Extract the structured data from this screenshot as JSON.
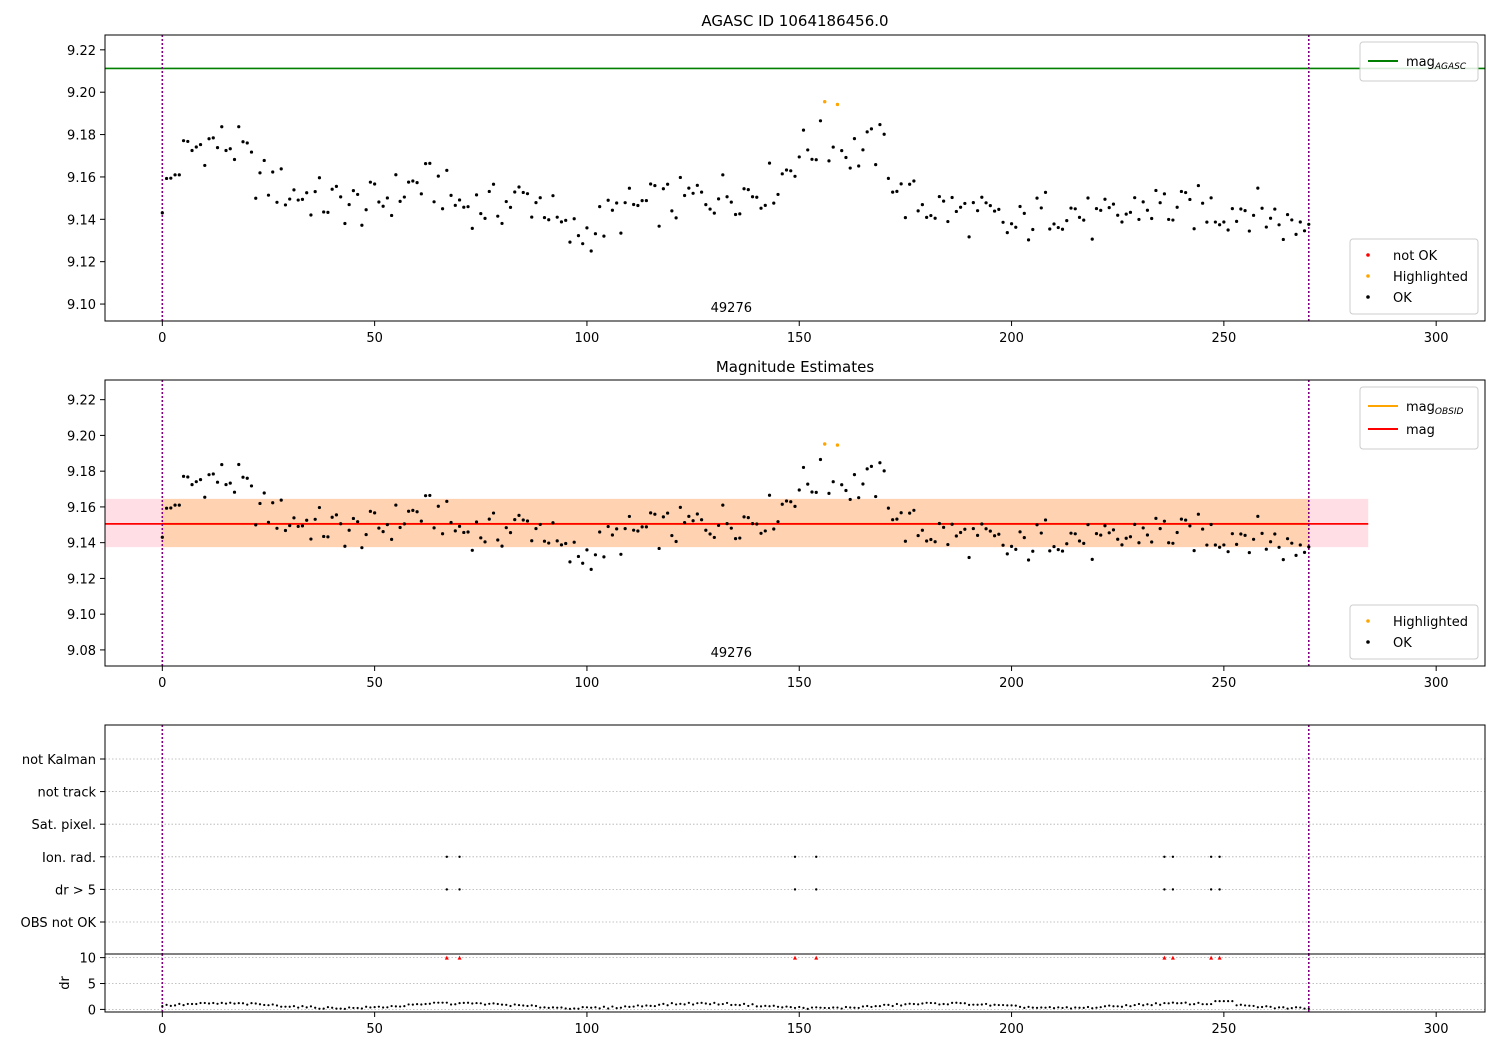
{
  "chart_data": [
    {
      "type": "scatter",
      "title": "AGASC ID 1064186456.0",
      "xlim": [
        -13.5,
        311.5
      ],
      "ylim": [
        9.092,
        9.227
      ],
      "xticks": [
        0,
        50,
        100,
        150,
        200,
        250,
        300
      ],
      "yticks": [
        9.1,
        9.12,
        9.14,
        9.16,
        9.18,
        9.2,
        9.22
      ],
      "xtick_labels": [
        "0",
        "50",
        "100",
        "150",
        "200",
        "250",
        "300"
      ],
      "ytick_labels": [
        "9.10",
        "9.12",
        "9.14",
        "9.16",
        "9.18",
        "9.20",
        "9.22"
      ],
      "annotation": "49276",
      "annotation_x": 134,
      "vlines": [
        0,
        270
      ],
      "hline": {
        "y": 9.2112,
        "color": "#008000"
      },
      "series": [
        {
          "name": "not OK",
          "color": "#ff0000",
          "points": []
        },
        {
          "name": "Highlighted",
          "color": "#ffa500",
          "points": [
            [
              156,
              9.1955
            ],
            [
              159,
              9.1942
            ]
          ]
        },
        {
          "name": "OK",
          "color": "#000000"
        }
      ],
      "legend_lines": [
        {
          "label": "mag",
          "sub": "AGASC",
          "color": "#008000"
        }
      ],
      "legend_markers": [
        {
          "label": "not OK",
          "color": "#ff0000"
        },
        {
          "label": "Highlighted",
          "color": "#ffa500"
        },
        {
          "label": "OK",
          "color": "#000000"
        }
      ]
    },
    {
      "type": "scatter",
      "title": "Magnitude Estimates",
      "xlim": [
        -13.5,
        311.5
      ],
      "ylim": [
        9.071,
        9.231
      ],
      "xticks": [
        0,
        50,
        100,
        150,
        200,
        250,
        300
      ],
      "yticks": [
        9.08,
        9.1,
        9.12,
        9.14,
        9.16,
        9.18,
        9.2,
        9.22
      ],
      "xtick_labels": [
        "0",
        "50",
        "100",
        "150",
        "200",
        "250",
        "300"
      ],
      "ytick_labels": [
        "9.08",
        "9.10",
        "9.12",
        "9.14",
        "9.16",
        "9.18",
        "9.20",
        "9.22"
      ],
      "annotation": "49276",
      "annotation_x": 134,
      "vlines": [
        0,
        270
      ],
      "mag_line": {
        "y": 9.1505,
        "x0": -13.5,
        "x1": 284,
        "color": "#ff0000"
      },
      "obsid_line": {
        "y": 9.1505,
        "x0": 0,
        "x1": 270,
        "color": "#ffa500"
      },
      "band": {
        "y0": 9.1375,
        "y1": 9.1645,
        "x0": -13.5,
        "x1": 284
      },
      "obsid_band": {
        "y0": 9.1375,
        "y1": 9.1645,
        "x0": 0,
        "x1": 270
      },
      "series": [
        {
          "name": "Highlighted",
          "color": "#ffa500",
          "points": [
            [
              156,
              9.1952
            ],
            [
              159,
              9.1946
            ]
          ]
        },
        {
          "name": "OK",
          "color": "#000000"
        }
      ],
      "legend_lines": [
        {
          "label": "mag",
          "sub": "OBSID",
          "color": "#ffa500"
        },
        {
          "label": "mag",
          "sub": "",
          "color": "#ff0000"
        }
      ],
      "legend_markers": [
        {
          "label": "Highlighted",
          "color": "#ffa500"
        },
        {
          "label": "OK",
          "color": "#000000"
        }
      ]
    },
    {
      "type": "scatter",
      "title": "",
      "xlim": [
        -13.5,
        311.5
      ],
      "categories": [
        "not Kalman",
        "not track",
        "Sat. pixel.",
        "Ion. rad.",
        "dr > 5",
        "OBS not OK"
      ],
      "flag_x": [
        67,
        70,
        149,
        154,
        236,
        238,
        247,
        249
      ],
      "flag_rows": [
        "Ion. rad.",
        "dr > 5"
      ],
      "vlines": [
        0,
        270
      ],
      "xticks": [
        0,
        50,
        100,
        150,
        200,
        250,
        300
      ],
      "xtick_labels": [
        "0",
        "50",
        "100",
        "150",
        "200",
        "250",
        "300"
      ]
    },
    {
      "type": "scatter",
      "title": "",
      "ylabel": "dr",
      "xlim": [
        -13.5,
        311.5
      ],
      "ylim": [
        -0.5,
        10.7
      ],
      "yticks": [
        0,
        5,
        10
      ],
      "ytick_labels": [
        "0",
        "5",
        "10"
      ],
      "xticks": [
        0,
        50,
        100,
        150,
        200,
        250,
        300
      ],
      "xtick_labels": [
        "0",
        "50",
        "100",
        "150",
        "200",
        "250",
        "300"
      ],
      "vlines": [
        0,
        270
      ],
      "overflow_x": [
        67,
        70,
        149,
        154,
        236,
        238,
        247,
        249
      ],
      "overflow_y": 10,
      "overflow_color": "#ff0000"
    }
  ]
}
